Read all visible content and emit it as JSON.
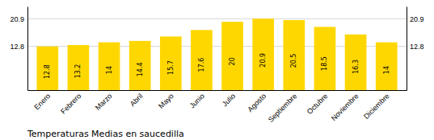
{
  "chart_data": {
    "type": "bar",
    "title": "Temperaturas Medias en saucedilla",
    "categories": [
      "Enero",
      "Febrero",
      "Marzo",
      "Abril",
      "Mayo",
      "Junio",
      "Julio",
      "Agosto",
      "Septiembre",
      "Octubre",
      "Noviembre",
      "Diciembre"
    ],
    "values": [
      12.8,
      13.2,
      14.0,
      14.4,
      15.7,
      17.6,
      20.0,
      20.9,
      20.5,
      18.5,
      16.3,
      14.0
    ],
    "color": "#FFD700",
    "ylim": [
      0,
      24.5
    ],
    "yticks": [
      12.8,
      20.9
    ],
    "y2lim": [
      0,
      24.5
    ],
    "y2ticks": [
      12.8,
      20.9
    ],
    "grid": true,
    "data_labels": true
  }
}
